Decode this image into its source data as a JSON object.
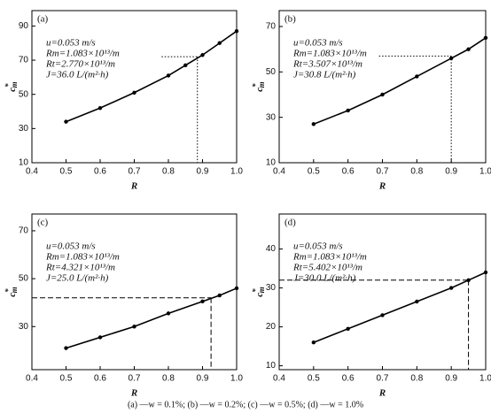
{
  "chart_data": [
    {
      "type": "line",
      "panel": "(a)",
      "annotations": [
        "u=0.053 m/s",
        "Rm=1.083×10¹³/m",
        "Rt=2.770×10¹³/m",
        "J=36.0 L/(m²·h)"
      ],
      "xlabel": "R",
      "ylabel": [
        "c",
        "*",
        "m"
      ],
      "x": [
        0.5,
        0.6,
        0.7,
        0.8,
        0.85,
        0.9,
        0.95,
        1.0
      ],
      "series": [
        {
          "color": "#000000",
          "values": [
            34,
            42,
            51,
            61,
            67,
            73,
            80,
            87
          ]
        }
      ],
      "xlim": [
        0.4,
        1.0
      ],
      "ylim": [
        10,
        99
      ],
      "xticks": [
        0.4,
        0.5,
        0.6,
        0.7,
        0.8,
        0.9,
        {
          "value": 1,
          "label": "1.0"
        }
      ],
      "yticks": [
        10,
        30,
        50,
        70,
        90
      ],
      "guide": {
        "x": 0.885,
        "y": 72,
        "x_start": 0.78,
        "style": "dotted"
      }
    },
    {
      "type": "line",
      "panel": "(b)",
      "annotations": [
        "u=0.053 m/s",
        "Rm=1.083×10¹³/m",
        "Rt=3.507×10¹³/m",
        "J=30.8 L/(m²·h)"
      ],
      "xlabel": "R",
      "ylabel": [
        "c",
        "*",
        "m"
      ],
      "x": [
        0.5,
        0.6,
        0.7,
        0.8,
        0.9,
        0.95,
        1.0
      ],
      "series": [
        {
          "color": "#000000",
          "values": [
            27,
            33,
            40,
            48,
            56,
            60,
            65
          ]
        }
      ],
      "xlim": [
        0.4,
        1.0
      ],
      "ylim": [
        10,
        77
      ],
      "xticks": [
        0.4,
        0.5,
        0.6,
        0.7,
        0.8,
        0.9,
        {
          "value": 1,
          "label": "1.0"
        }
      ],
      "yticks": [
        10,
        30,
        50,
        70
      ],
      "guide": {
        "x": 0.9,
        "y": 57,
        "x_start": 0.69,
        "style": "dotted"
      }
    },
    {
      "type": "line",
      "panel": "(c)",
      "annotations": [
        "u=0.053 m/s",
        "Rm=1.083×10¹³/m",
        "Rt=4.321×10¹³/m",
        "J=25.0 L/(m²·h)"
      ],
      "xlabel": "R",
      "ylabel": [
        "c",
        "*",
        "m"
      ],
      "x": [
        0.5,
        0.6,
        0.7,
        0.8,
        0.9,
        0.95,
        1.0
      ],
      "series": [
        {
          "color": "#000000",
          "values": [
            21,
            25.5,
            30,
            35.5,
            40.5,
            43,
            46
          ]
        }
      ],
      "xlim": [
        0.4,
        1.0
      ],
      "ylim": [
        12,
        77
      ],
      "xticks": [
        0.4,
        0.5,
        0.6,
        0.7,
        0.8,
        0.9,
        {
          "value": 1,
          "label": "1.0"
        }
      ],
      "yticks": [
        30,
        50,
        70
      ],
      "guide": {
        "x": 0.925,
        "y": 42,
        "x_start": 0.4,
        "style": "dashed"
      }
    },
    {
      "type": "line",
      "panel": "(d)",
      "annotations": [
        "u=0.053 m/s",
        "Rm=1.083×10¹³/m",
        "Rt=5.402×10¹³/m",
        "J=30.0 L/(m²·h)"
      ],
      "xlabel": "R",
      "ylabel": [
        "c",
        "*",
        "m"
      ],
      "x": [
        0.5,
        0.6,
        0.7,
        0.8,
        0.9,
        0.95,
        1.0
      ],
      "series": [
        {
          "color": "#000000",
          "values": [
            16,
            19.5,
            23,
            26.5,
            30,
            32,
            34
          ]
        }
      ],
      "xlim": [
        0.4,
        1.0
      ],
      "ylim": [
        9,
        49
      ],
      "xticks": [
        0.4,
        0.5,
        0.6,
        0.7,
        0.8,
        0.9,
        {
          "value": 1,
          "label": "1.0"
        }
      ],
      "yticks": [
        10,
        20,
        30,
        40
      ],
      "guide": {
        "x": 0.95,
        "y": 32,
        "x_start": 0.4,
        "style": "dashed"
      }
    }
  ],
  "caption": "(a) —w = 0.1%; (b) —w = 0.2%; (c) —w = 0.5%; (d) —w = 1.0%"
}
